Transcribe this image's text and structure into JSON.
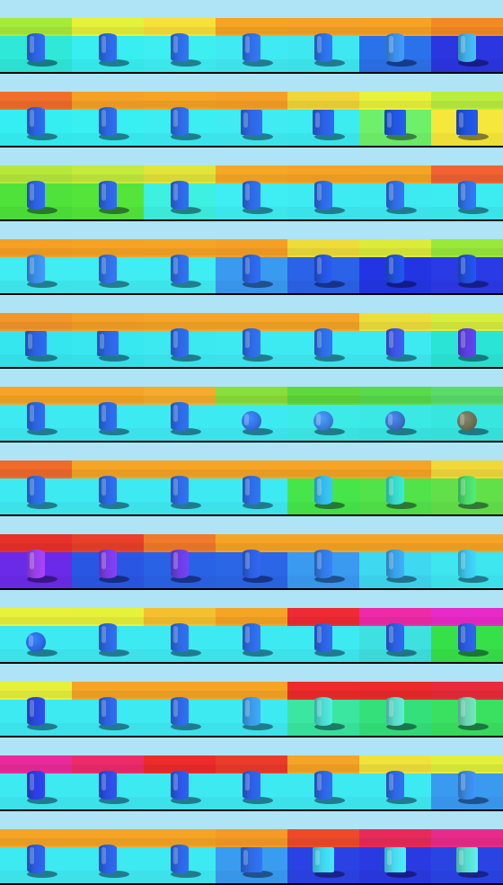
{
  "grid": {
    "rows": [
      [
        {
          "wall": "#a8ea3a",
          "floor": "#2fe8d8",
          "object": "cylinder",
          "color": "#2b63df"
        },
        {
          "wall": "#e4f23a",
          "floor": "#38eef0",
          "object": "cylinder",
          "color": "#2a66e0"
        },
        {
          "wall": "#f7e03a",
          "floor": "#3eeff2",
          "object": "cylinder",
          "color": "#2d6be2"
        },
        {
          "wall": "#f5a423",
          "floor": "#40eaf2",
          "object": "cylinder",
          "color": "#2f6ee3"
        },
        {
          "wall": "#f6a127",
          "floor": "#3fe8f1",
          "object": "cylinder",
          "color": "#2c6fe4"
        },
        {
          "wall": "#f7a225",
          "floor": "#2a72ea",
          "object": "cylinder",
          "color": "#3c8ee8"
        },
        {
          "wall": "#f38a24",
          "floor": "#2b35e0",
          "object": "cylinder",
          "color": "#3fb0e6"
        }
      ],
      [
        {
          "wall": "#f06e2a",
          "floor": "#35eef2",
          "object": "cylinder",
          "color": "#2a62df"
        },
        {
          "wall": "#f5a126",
          "floor": "#38eff2",
          "object": "cylinder",
          "color": "#2b65e0"
        },
        {
          "wall": "#f6a425",
          "floor": "#3cedf2",
          "object": "cylinder",
          "color": "#2d68e0"
        },
        {
          "wall": "#f59f27",
          "floor": "#40ecf2",
          "object": "cube",
          "color": "#2d65e1"
        },
        {
          "wall": "#f0d638",
          "floor": "#3cecf0",
          "object": "cube",
          "color": "#2a5fe0"
        },
        {
          "wall": "#e8f23a",
          "floor": "#6ff06a",
          "object": "cube",
          "color": "#2155de"
        },
        {
          "wall": "#b9ee3e",
          "floor": "#f6e83a",
          "object": "cube",
          "color": "#1f52db"
        }
      ],
      [
        {
          "wall": "#b6e83c",
          "floor": "#4ee23a",
          "object": "cylinder",
          "color": "#2b62df"
        },
        {
          "wall": "#c4ea3c",
          "floor": "#55e53a",
          "object": "cylinder",
          "color": "#2b62df"
        },
        {
          "wall": "#e2e43a",
          "floor": "#3ef0e0",
          "object": "cylinder",
          "color": "#2c65e0"
        },
        {
          "wall": "#f5a826",
          "floor": "#3eeef2",
          "object": "cylinder",
          "color": "#2d68e1"
        },
        {
          "wall": "#f6a325",
          "floor": "#3eebf2",
          "object": "cylinder",
          "color": "#2d69e2"
        },
        {
          "wall": "#f6a425",
          "floor": "#3eeaf2",
          "object": "cylinder",
          "color": "#2e6ce2"
        },
        {
          "wall": "#f06232",
          "floor": "#3cecf0",
          "object": "cylinder",
          "color": "#2e6ee3"
        }
      ],
      [
        {
          "wall": "#f6a025",
          "floor": "#3fedf2",
          "object": "cylinder",
          "color": "#3a8de6"
        },
        {
          "wall": "#f6a325",
          "floor": "#40edf2",
          "object": "cylinder",
          "color": "#306ee2"
        },
        {
          "wall": "#f6a425",
          "floor": "#40edf2",
          "object": "cylinder",
          "color": "#2d6ae1"
        },
        {
          "wall": "#f59f27",
          "floor": "#3a9af0",
          "object": "cylinder",
          "color": "#2b64e0"
        },
        {
          "wall": "#eedc3a",
          "floor": "#2a62e8",
          "object": "cylinder",
          "color": "#2454de"
        },
        {
          "wall": "#dceb3a",
          "floor": "#2335e2",
          "object": "cylinder",
          "color": "#1f4fdb"
        },
        {
          "wall": "#9ae83a",
          "floor": "#2a3ae4",
          "object": "cylinder",
          "color": "#1f4edb"
        }
      ],
      [
        {
          "wall": "#f3962a",
          "floor": "#35e6ee",
          "object": "cube",
          "color": "#2a62df"
        },
        {
          "wall": "#f5a026",
          "floor": "#38e8f0",
          "object": "cube",
          "color": "#2b64e0"
        },
        {
          "wall": "#f6a425",
          "floor": "#3ce9f1",
          "object": "cylinder",
          "color": "#2c66e0"
        },
        {
          "wall": "#f6a425",
          "floor": "#3eeaf2",
          "object": "cylinder",
          "color": "#2d69e1"
        },
        {
          "wall": "#f6a425",
          "floor": "#3eeaf2",
          "object": "cylinder",
          "color": "#2d6be2"
        },
        {
          "wall": "#eede3a",
          "floor": "#3eeaf2",
          "object": "cylinder",
          "color": "#3b55e0"
        },
        {
          "wall": "#d8ee3c",
          "floor": "#2ae4d6",
          "object": "cylinder",
          "color": "#5a3ee0"
        }
      ],
      [
        {
          "wall": "#f6a425",
          "floor": "#3eeaf2",
          "object": "cylinder",
          "color": "#2a64df"
        },
        {
          "wall": "#f6a425",
          "floor": "#3eeaf2",
          "object": "cylinder",
          "color": "#2b66e0"
        },
        {
          "wall": "#f5ac2a",
          "floor": "#3eeaf2",
          "object": "cylinder",
          "color": "#2c68e0"
        },
        {
          "wall": "#8ade3a",
          "floor": "#3eeaf2",
          "object": "sphere",
          "color": "#3270dd"
        },
        {
          "wall": "#5ed83a",
          "floor": "#3ceae8",
          "object": "sphere",
          "color": "#3a80dc"
        },
        {
          "wall": "#58da4a",
          "floor": "#3ae8e4",
          "object": "sphere",
          "color": "#3a6ec4"
        },
        {
          "wall": "#5adc6a",
          "floor": "#38e6e0",
          "object": "sphere",
          "color": "#6a6e55"
        }
      ],
      [
        {
          "wall": "#f06a2a",
          "floor": "#3eeaf2",
          "object": "cylinder",
          "color": "#2b6ae2"
        },
        {
          "wall": "#f6a425",
          "floor": "#3eeaf2",
          "object": "cylinder",
          "color": "#2b66e0"
        },
        {
          "wall": "#f6a425",
          "floor": "#3eeaf2",
          "object": "cylinder",
          "color": "#2d69e1"
        },
        {
          "wall": "#f6a425",
          "floor": "#3eeaf2",
          "object": "cylinder",
          "color": "#2d6be2"
        },
        {
          "wall": "#f6a425",
          "floor": "#46e64a",
          "object": "cylinder",
          "color": "#33b8e8"
        },
        {
          "wall": "#f6a425",
          "floor": "#52e24a",
          "object": "cylinder",
          "color": "#35d8c8"
        },
        {
          "wall": "#f0d83a",
          "floor": "#62e04a",
          "object": "cylinder",
          "color": "#4ad86a"
        }
      ],
      [
        {
          "wall": "#e8302a",
          "floor": "#6a2ae8",
          "object": "cylinder",
          "color": "#9a3ee8"
        },
        {
          "wall": "#e8402a",
          "floor": "#2a56e4",
          "object": "cylinder",
          "color": "#7a3ae4"
        },
        {
          "wall": "#f07a2a",
          "floor": "#2a62e6",
          "object": "cylinder",
          "color": "#6a3ce2"
        },
        {
          "wall": "#f6a425",
          "floor": "#2a66e6",
          "object": "cylinder",
          "color": "#2d5ee0"
        },
        {
          "wall": "#f6a425",
          "floor": "#3a9af0",
          "object": "cylinder",
          "color": "#3078e4"
        },
        {
          "wall": "#f6a425",
          "floor": "#3ed8f0",
          "object": "cylinder",
          "color": "#38a0e8"
        },
        {
          "wall": "#f6a425",
          "floor": "#3ee6f0",
          "object": "cylinder",
          "color": "#3cc4ea"
        }
      ],
      [
        {
          "wall": "#e8f23a",
          "floor": "#3eeaf2",
          "object": "sphere",
          "color": "#2c68e0"
        },
        {
          "wall": "#e6f23a",
          "floor": "#3eeaf2",
          "object": "cylinder",
          "color": "#2b66e0"
        },
        {
          "wall": "#f4c030",
          "floor": "#3eeaf2",
          "object": "cylinder",
          "color": "#2c68e0"
        },
        {
          "wall": "#f6a425",
          "floor": "#3eeaf2",
          "object": "cylinder",
          "color": "#2d6ae1"
        },
        {
          "wall": "#ef2a34",
          "floor": "#3eeaf2",
          "object": "cylinder",
          "color": "#2c62e0"
        },
        {
          "wall": "#ee2aa8",
          "floor": "#3ee0e0",
          "object": "cylinder",
          "color": "#2b5fe0"
        },
        {
          "wall": "#e82ac8",
          "floor": "#36e048",
          "object": "cylinder",
          "color": "#2a5cdf"
        }
      ],
      [
        {
          "wall": "#e6f03a",
          "floor": "#3eeaf2",
          "object": "cylinder",
          "color": "#2a48dc"
        },
        {
          "wall": "#f6a425",
          "floor": "#3eeaf2",
          "object": "cylinder",
          "color": "#2c62e0"
        },
        {
          "wall": "#f6a425",
          "floor": "#3eeaf2",
          "object": "cylinder",
          "color": "#2d66e1"
        },
        {
          "wall": "#f6a425",
          "floor": "#3eeaf2",
          "object": "cylinder",
          "color": "#3b9ae6"
        },
        {
          "wall": "#ee2a2a",
          "floor": "#3ae6a0",
          "object": "cylinder",
          "color": "#4ad8d0"
        },
        {
          "wall": "#ec2a2a",
          "floor": "#34e07a",
          "object": "cylinder",
          "color": "#5ad8c8"
        },
        {
          "wall": "#e82a3a",
          "floor": "#3ae060",
          "object": "cylinder",
          "color": "#6ad4b0"
        }
      ],
      [
        {
          "wall": "#ea2a9a",
          "floor": "#3eeaf2",
          "object": "cylinder",
          "color": "#2a3ee0"
        },
        {
          "wall": "#ee2a6a",
          "floor": "#3eeaf2",
          "object": "cylinder",
          "color": "#2a4cdf"
        },
        {
          "wall": "#ee2a2a",
          "floor": "#3eeaf2",
          "object": "cylinder",
          "color": "#2b56e0"
        },
        {
          "wall": "#ec3a2a",
          "floor": "#3eeaf2",
          "object": "cylinder",
          "color": "#2c5ee0"
        },
        {
          "wall": "#f6a425",
          "floor": "#3eeaf2",
          "object": "cylinder",
          "color": "#2d64e1"
        },
        {
          "wall": "#f0e23a",
          "floor": "#3eeaf2",
          "object": "cylinder",
          "color": "#2d66e1"
        },
        {
          "wall": "#e2f03a",
          "floor": "#3a9af0",
          "object": "cylinder",
          "color": "#3a88e4"
        }
      ],
      [
        {
          "wall": "#f6a425",
          "floor": "#3eeaf2",
          "object": "cylinder",
          "color": "#2a5cdf"
        },
        {
          "wall": "#f6a425",
          "floor": "#3eeaf2",
          "object": "cylinder",
          "color": "#2b60e0"
        },
        {
          "wall": "#f6a425",
          "floor": "#3eeaf2",
          "object": "cylinder",
          "color": "#2c64e0"
        },
        {
          "wall": "#f59a27",
          "floor": "#3a9cf0",
          "object": "cube",
          "color": "#2d6ae2"
        },
        {
          "wall": "#ee4a2a",
          "floor": "#2a42e4",
          "object": "cube",
          "color": "#40d4ee"
        },
        {
          "wall": "#e82a5a",
          "floor": "#2a3ae2",
          "object": "cube",
          "color": "#48daee"
        },
        {
          "wall": "#e82a8a",
          "floor": "#2a44e4",
          "object": "cube",
          "color": "#56dcd0"
        }
      ]
    ]
  }
}
